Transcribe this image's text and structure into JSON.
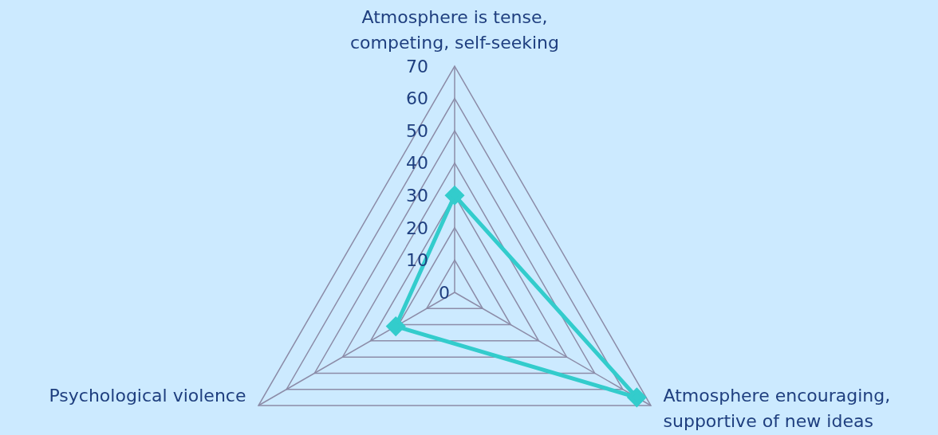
{
  "chart_data": {
    "type": "radar",
    "categories": [
      "Atmosphere is tense, competing, self-seeking",
      "Atmosphere encouraging, supportive of new ideas",
      "Psychological violence"
    ],
    "series": [
      {
        "color": "#33cccc",
        "values": [
          30,
          65,
          21
        ]
      }
    ],
    "ylim": [
      0,
      70
    ],
    "yticks": [
      0,
      10,
      20,
      30,
      40,
      50,
      60,
      70
    ],
    "marker": "diamond",
    "grid": true,
    "legend": false
  }
}
